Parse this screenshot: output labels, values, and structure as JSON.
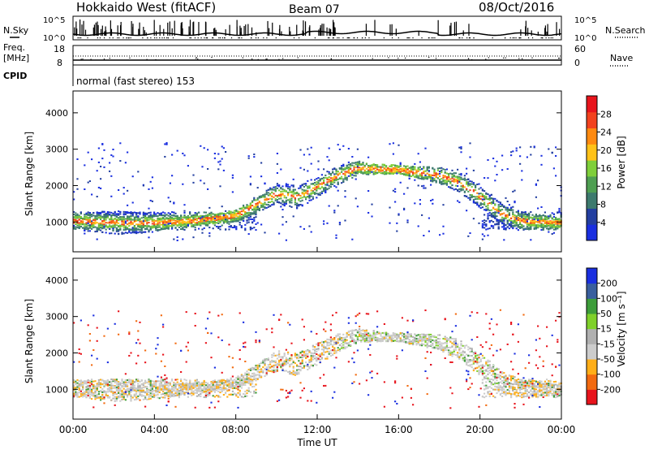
{
  "header": {
    "title": "Hokkaido West (fitACF)",
    "beam": "Beam 07",
    "date": "08/Oct/2016"
  },
  "status_panels": {
    "nsky_label": "N.Sky",
    "nsearch_label": "N.Search",
    "noise_ticks": [
      "10^5",
      "10^0"
    ],
    "freq_label_1": "Freq.",
    "freq_label_2": "[MHz]",
    "freq_ticks": [
      "18",
      "8"
    ],
    "nave_label": "Nave",
    "nave_ticks": [
      "60",
      "0"
    ],
    "cpid_label": "CPID",
    "cpid_text": "normal (fast stereo) 153"
  },
  "xaxis": {
    "label": "Time UT",
    "ticks": [
      "00:00",
      "04:00",
      "08:00",
      "12:00",
      "16:00",
      "20:00",
      "00:00"
    ]
  },
  "colors": {
    "power": [
      "#1a2fe0",
      "#233fa0",
      "#3d7a6e",
      "#4f9f52",
      "#7fcf3a",
      "#ffc218",
      "#ff8a10",
      "#f2421e",
      "#e8141c"
    ],
    "velocity": [
      "#e8141c",
      "#f26a10",
      "#ffae18",
      "#cccccc",
      "#b0b0b0",
      "#7fd02a",
      "#3d9d3a",
      "#3a5f9e",
      "#1a2fe0"
    ]
  },
  "chart_data": [
    {
      "type": "heatmap",
      "title": "",
      "xlabel": "Time UT",
      "ylabel": "Slant Range [km]",
      "x_range_hours": [
        0,
        24
      ],
      "ylim": [
        180,
        4600
      ],
      "yticks": [
        "1000",
        "2000",
        "3000",
        "4000"
      ],
      "colorbar": {
        "label": "Power [dB]",
        "ticks": [
          "28",
          "24",
          "20",
          "16",
          "12",
          "8",
          "4"
        ],
        "range": [
          0,
          30
        ]
      },
      "main_band_range_km": [
        [
          0,
          1050
        ],
        [
          2,
          1000
        ],
        [
          4,
          1000
        ],
        [
          6,
          1050
        ],
        [
          8,
          1200
        ],
        [
          9,
          1500
        ],
        [
          10,
          1800
        ],
        [
          11,
          1700
        ],
        [
          12,
          2000
        ],
        [
          13,
          2300
        ],
        [
          14,
          2500
        ],
        [
          16,
          2450
        ],
        [
          18,
          2300
        ],
        [
          19,
          2100
        ],
        [
          20,
          1700
        ],
        [
          21,
          1250
        ],
        [
          22,
          1050
        ],
        [
          24,
          1000
        ]
      ]
    },
    {
      "type": "heatmap",
      "title": "",
      "xlabel": "Time UT",
      "ylabel": "Slant Range [km]",
      "x_range_hours": [
        0,
        24
      ],
      "ylim": [
        180,
        4600
      ],
      "yticks": [
        "1000",
        "2000",
        "3000",
        "4000"
      ],
      "colorbar": {
        "label": "Velocity [m s⁻¹]",
        "ticks": [
          "200",
          "100",
          "50",
          "15",
          "-15",
          "-50",
          "-100",
          "-200"
        ],
        "range": [
          -250,
          250
        ]
      },
      "main_band_range_km": [
        [
          0,
          1050
        ],
        [
          2,
          1000
        ],
        [
          4,
          1000
        ],
        [
          6,
          1050
        ],
        [
          8,
          1200
        ],
        [
          9,
          1500
        ],
        [
          10,
          1800
        ],
        [
          11,
          1700
        ],
        [
          12,
          2000
        ],
        [
          13,
          2300
        ],
        [
          14,
          2500
        ],
        [
          16,
          2450
        ],
        [
          18,
          2300
        ],
        [
          19,
          2100
        ],
        [
          20,
          1700
        ],
        [
          21,
          1250
        ],
        [
          22,
          1050
        ],
        [
          24,
          1000
        ]
      ]
    }
  ]
}
